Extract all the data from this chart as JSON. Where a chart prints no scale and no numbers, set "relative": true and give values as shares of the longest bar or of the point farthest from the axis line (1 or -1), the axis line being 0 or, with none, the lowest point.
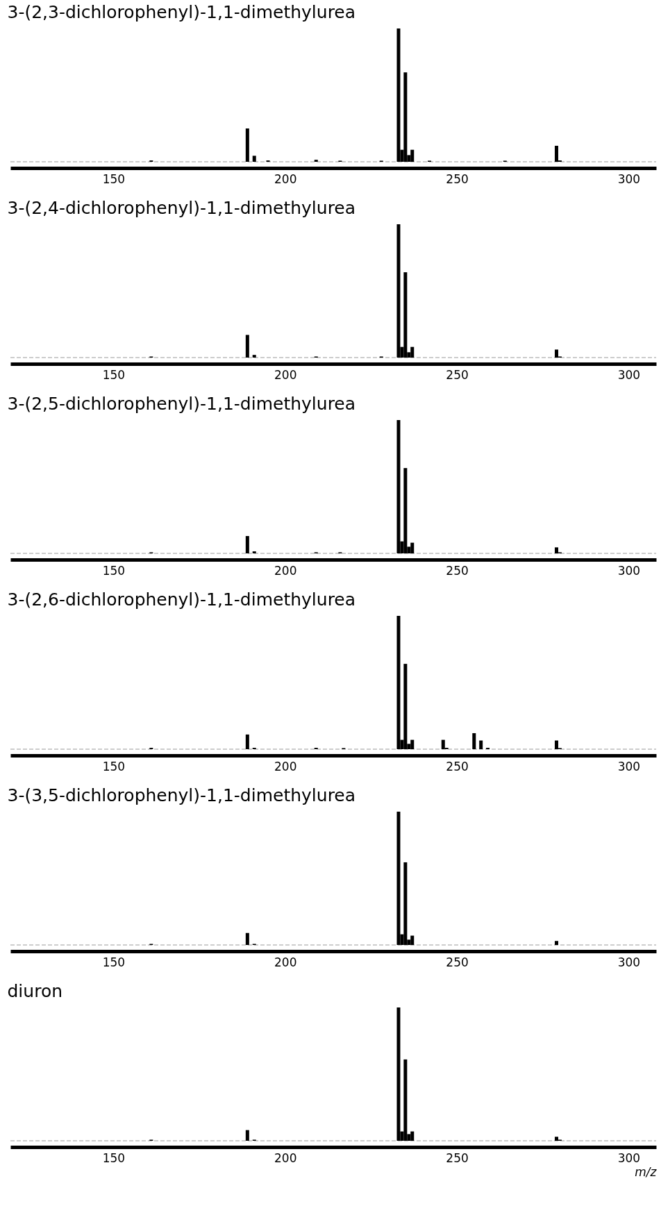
{
  "chart_data": [
    {
      "type": "bar",
      "title": "3-(2,3-dichlorophenyl)-1,1-dimethylurea",
      "relative": true,
      "color": "#000000",
      "grid": false,
      "xlim": [
        121,
        307
      ],
      "xticks": [
        150,
        200,
        250,
        300
      ],
      "x": [
        161,
        189,
        191,
        195,
        209,
        216,
        228,
        233,
        234,
        235,
        236,
        237,
        242,
        264,
        279,
        280
      ],
      "values": [
        0.01,
        0.25,
        0.045,
        0.01,
        0.015,
        0.008,
        0.008,
        1,
        0.09,
        0.67,
        0.05,
        0.09,
        0.008,
        0.008,
        0.12,
        0.01
      ]
    },
    {
      "type": "bar",
      "title": "3-(2,4-dichlorophenyl)-1,1-dimethylurea",
      "relative": true,
      "color": "#000000",
      "grid": false,
      "xlim": [
        121,
        307
      ],
      "xticks": [
        150,
        200,
        250,
        300
      ],
      "x": [
        161,
        189,
        191,
        209,
        228,
        233,
        234,
        235,
        236,
        237,
        279,
        280
      ],
      "values": [
        0.008,
        0.17,
        0.02,
        0.008,
        0.008,
        1,
        0.08,
        0.64,
        0.04,
        0.08,
        0.06,
        0.008
      ]
    },
    {
      "type": "bar",
      "title": "3-(2,5-dichlorophenyl)-1,1-dimethylurea",
      "relative": true,
      "color": "#000000",
      "grid": false,
      "xlim": [
        121,
        307
      ],
      "xticks": [
        150,
        200,
        250,
        300
      ],
      "x": [
        161,
        189,
        191,
        209,
        216,
        233,
        234,
        235,
        236,
        237,
        279,
        280
      ],
      "values": [
        0.008,
        0.13,
        0.015,
        0.008,
        0.008,
        1,
        0.09,
        0.64,
        0.05,
        0.08,
        0.045,
        0.008
      ]
    },
    {
      "type": "bar",
      "title": "3-(2,6-dichlorophenyl)-1,1-dimethylurea",
      "relative": true,
      "color": "#000000",
      "grid": false,
      "xlim": [
        121,
        307
      ],
      "xticks": [
        150,
        200,
        250,
        300
      ],
      "x": [
        161,
        189,
        191,
        209,
        217,
        233,
        234,
        235,
        236,
        237,
        246,
        247,
        255,
        257,
        259,
        279,
        280
      ],
      "values": [
        0.01,
        0.11,
        0.01,
        0.01,
        0.008,
        1,
        0.07,
        0.64,
        0.04,
        0.07,
        0.07,
        0.01,
        0.12,
        0.065,
        0.01,
        0.065,
        0.008
      ]
    },
    {
      "type": "bar",
      "title": "3-(3,5-dichlorophenyl)-1,1-dimethylurea",
      "relative": true,
      "color": "#000000",
      "grid": false,
      "xlim": [
        121,
        307
      ],
      "xticks": [
        150,
        200,
        250,
        300
      ],
      "x": [
        161,
        189,
        191,
        233,
        234,
        235,
        236,
        237,
        279
      ],
      "values": [
        0.008,
        0.09,
        0.008,
        1,
        0.08,
        0.62,
        0.04,
        0.07,
        0.03
      ]
    },
    {
      "type": "bar",
      "title": "diuron",
      "xlabel": "m/z",
      "relative": true,
      "color": "#000000",
      "grid": false,
      "xlim": [
        121,
        307
      ],
      "xticks": [
        150,
        200,
        250,
        300
      ],
      "x": [
        161,
        189,
        191,
        233,
        234,
        235,
        236,
        237,
        279,
        280
      ],
      "values": [
        0.008,
        0.08,
        0.008,
        1,
        0.07,
        0.61,
        0.05,
        0.07,
        0.03,
        0.008
      ]
    }
  ]
}
